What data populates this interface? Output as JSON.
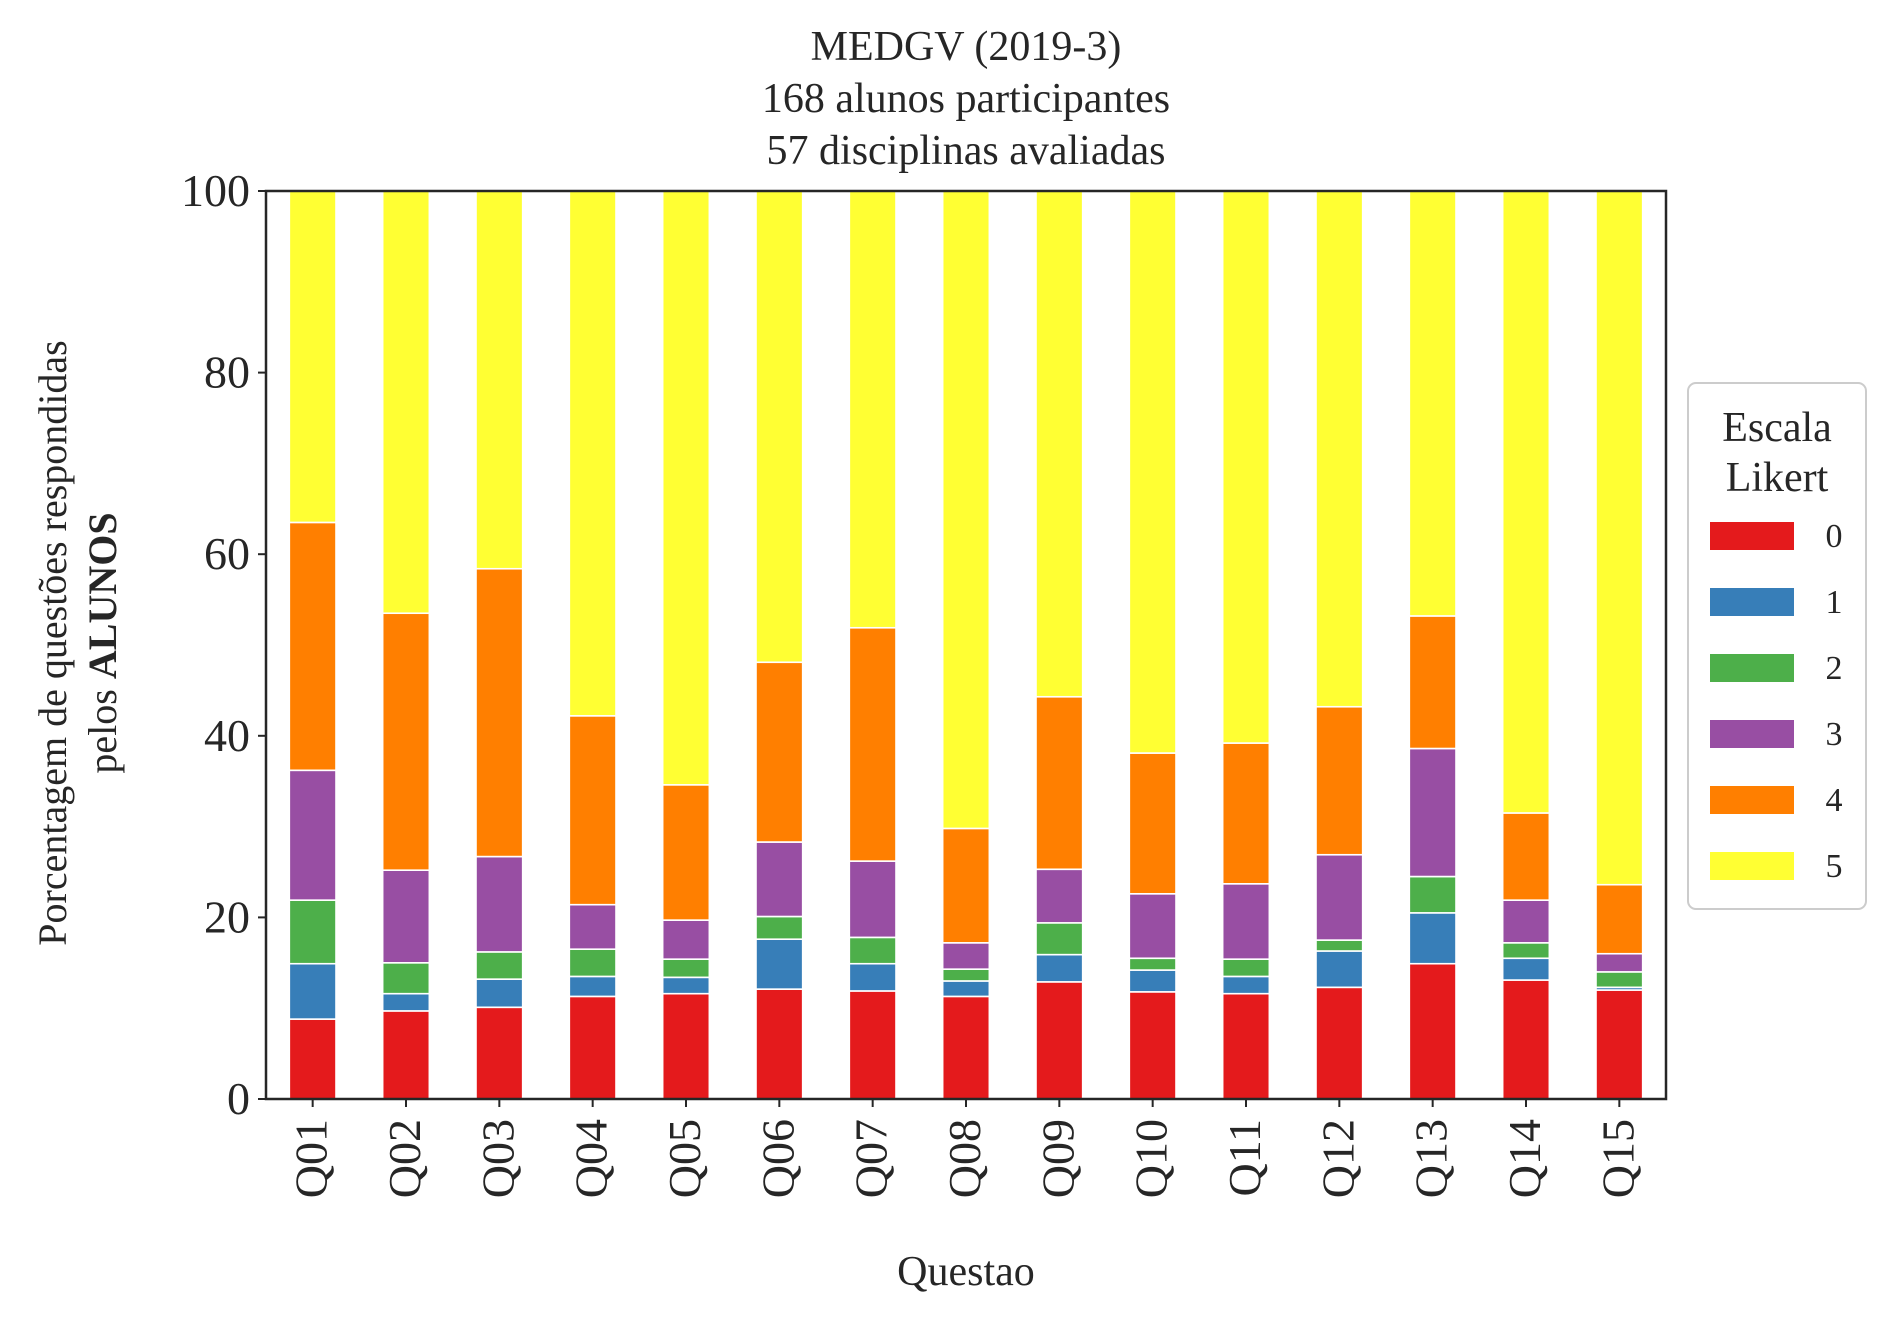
{
  "chart_data": {
    "type": "bar",
    "stacked": true,
    "title_lines": [
      "MEDGV (2019-3)",
      "168 alunos participantes",
      "57 disciplinas avaliadas"
    ],
    "xlabel": "Questao",
    "ylabel_line1": "Porcentagem de questões respondidas",
    "ylabel_line2_prefix": "pelos ",
    "ylabel_line2_bold": "ALUNOS",
    "ylim": [
      0,
      100
    ],
    "yticks": [
      0,
      20,
      40,
      60,
      80,
      100
    ],
    "categories": [
      "Q01",
      "Q02",
      "Q03",
      "Q04",
      "Q05",
      "Q06",
      "Q07",
      "Q08",
      "Q09",
      "Q10",
      "Q11",
      "Q12",
      "Q13",
      "Q14",
      "Q15"
    ],
    "legend": {
      "title_lines": [
        "Escala",
        "Likert"
      ],
      "placement": "right"
    },
    "series": [
      {
        "name": "0",
        "color": "#e41a1c",
        "values": [
          8.8,
          9.7,
          10.1,
          11.3,
          11.6,
          12.1,
          11.9,
          11.3,
          12.9,
          11.8,
          11.6,
          12.3,
          14.9,
          13.1,
          12.0
        ]
      },
      {
        "name": "1",
        "color": "#377eb8",
        "values": [
          6.1,
          1.9,
          3.1,
          2.2,
          1.8,
          5.5,
          3.0,
          1.7,
          3.0,
          2.4,
          1.9,
          4.0,
          5.6,
          2.4,
          0.3
        ]
      },
      {
        "name": "2",
        "color": "#4daf4a",
        "values": [
          7.0,
          3.4,
          3.0,
          3.0,
          2.0,
          2.5,
          2.9,
          1.3,
          3.5,
          1.3,
          1.9,
          1.2,
          4.0,
          1.7,
          1.7
        ]
      },
      {
        "name": "3",
        "color": "#984ea3",
        "values": [
          14.3,
          10.2,
          10.5,
          4.9,
          4.3,
          8.2,
          8.4,
          2.9,
          5.9,
          7.1,
          8.3,
          9.4,
          14.1,
          4.7,
          2.0
        ]
      },
      {
        "name": "4",
        "color": "#ff7f00",
        "values": [
          27.3,
          28.3,
          31.7,
          20.8,
          14.9,
          19.8,
          25.7,
          12.6,
          19.0,
          15.5,
          15.5,
          16.3,
          14.6,
          9.6,
          7.6
        ]
      },
      {
        "name": "5",
        "color": "#ffff33",
        "values": [
          36.5,
          46.5,
          41.6,
          57.8,
          65.4,
          51.9,
          48.1,
          70.2,
          55.7,
          61.9,
          60.8,
          56.8,
          46.8,
          68.5,
          76.4
        ]
      }
    ]
  }
}
